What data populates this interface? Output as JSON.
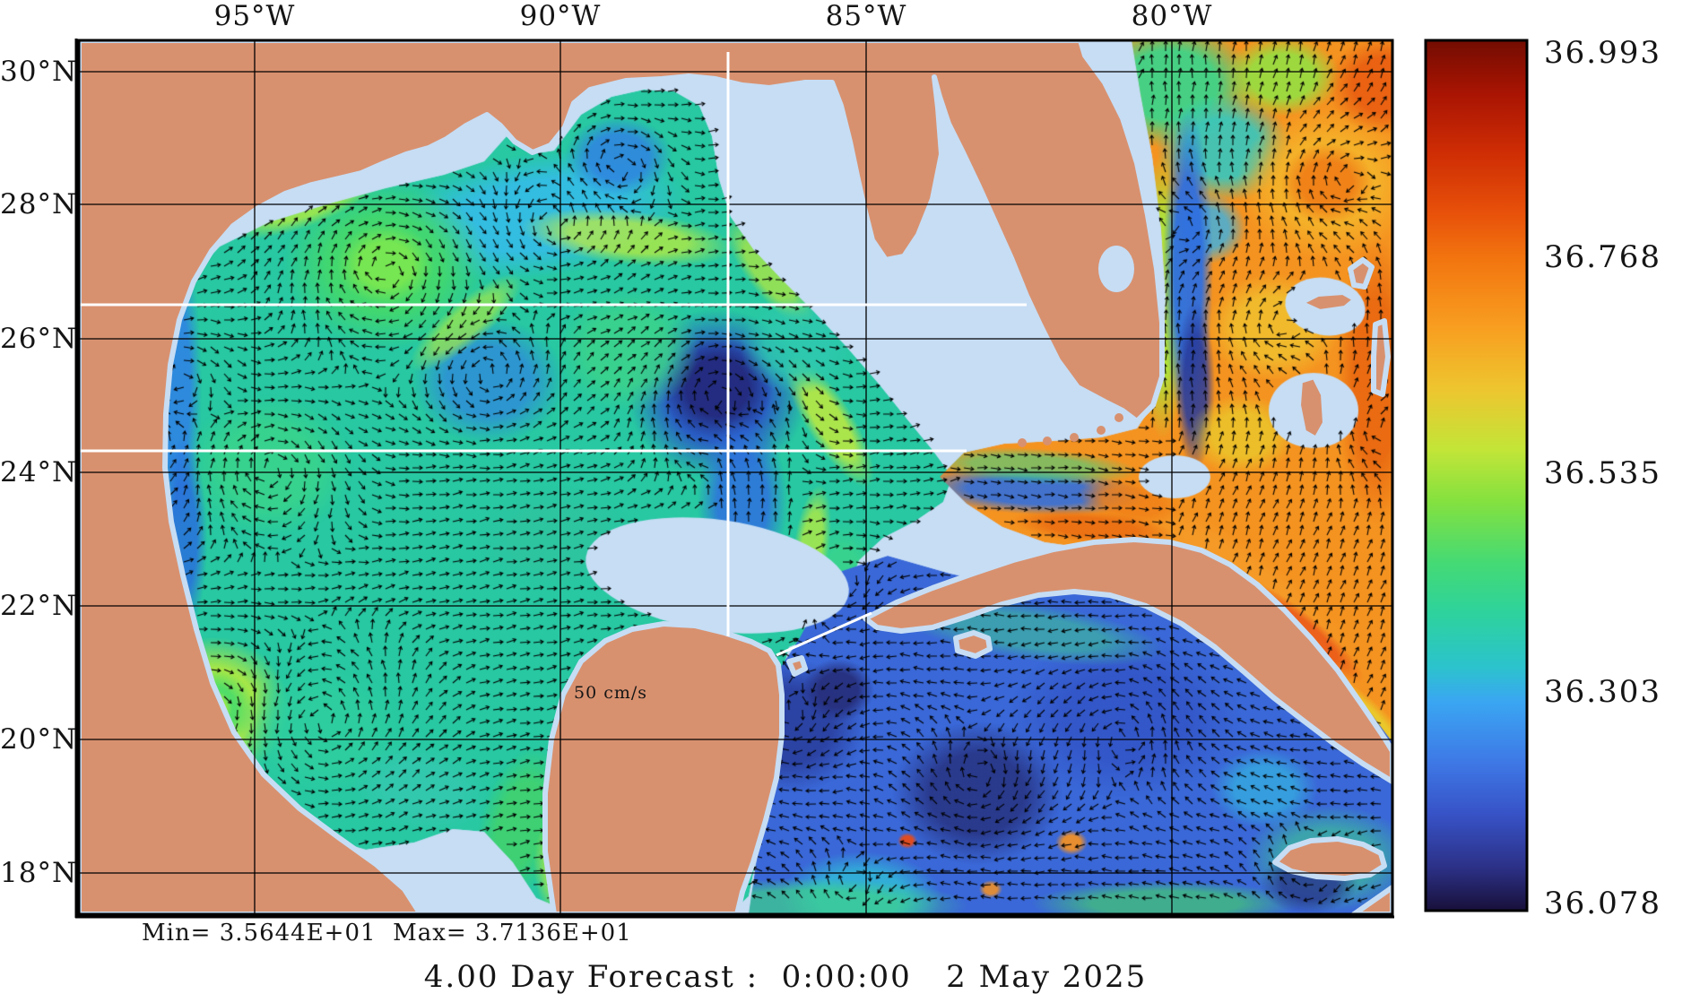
{
  "axes": {
    "lon": [
      {
        "label": "95°W"
      },
      {
        "label": "90°W"
      },
      {
        "label": "85°W"
      },
      {
        "label": "80°W"
      }
    ],
    "lat": [
      {
        "label": "30°N"
      },
      {
        "label": "28°N"
      },
      {
        "label": "26°N"
      },
      {
        "label": "24°N"
      },
      {
        "label": "22°N"
      },
      {
        "label": "20°N"
      },
      {
        "label": "18°N"
      }
    ]
  },
  "colorbar": {
    "labels": [
      "36.993",
      "36.768",
      "36.535",
      "36.303",
      "36.078"
    ],
    "min_value": 36.078,
    "max_value": 36.993,
    "gradient": [
      {
        "at": 0.0,
        "color": "#730c01"
      },
      {
        "at": 0.06,
        "color": "#a81403"
      },
      {
        "at": 0.13,
        "color": "#cf2d04"
      },
      {
        "at": 0.2,
        "color": "#e8520a"
      },
      {
        "at": 0.25,
        "color": "#f2740f"
      },
      {
        "at": 0.33,
        "color": "#f89e20"
      },
      {
        "at": 0.4,
        "color": "#eec52f"
      },
      {
        "at": 0.47,
        "color": "#c3e538"
      },
      {
        "at": 0.53,
        "color": "#84e13f"
      },
      {
        "at": 0.6,
        "color": "#45da74"
      },
      {
        "at": 0.66,
        "color": "#2dd29e"
      },
      {
        "at": 0.72,
        "color": "#2cc3cd"
      },
      {
        "at": 0.76,
        "color": "#3aa6f2"
      },
      {
        "at": 0.83,
        "color": "#3e78e6"
      },
      {
        "at": 0.89,
        "color": "#3752c6"
      },
      {
        "at": 0.95,
        "color": "#2c3187"
      },
      {
        "at": 1.0,
        "color": "#18103a"
      }
    ]
  },
  "map": {
    "land_color": "#d8916f",
    "shelf_color": "#c6ddf4",
    "gulf_base_color": "#27c8a2",
    "caribbean_base_color": "#3a68d8",
    "atlantic_base_color": "#f59320",
    "arrow_color": "#000000",
    "gridline_color": "#000000",
    "transect_color": "#ffffff",
    "scale_annotation": {
      "label": "50 cm/s"
    }
  },
  "footer": {
    "minmax": "Min= 3.5644E+01  Max= 3.7136E+01",
    "title": "4.00 Day Forecast :  0:00:00   2 May 2025"
  }
}
